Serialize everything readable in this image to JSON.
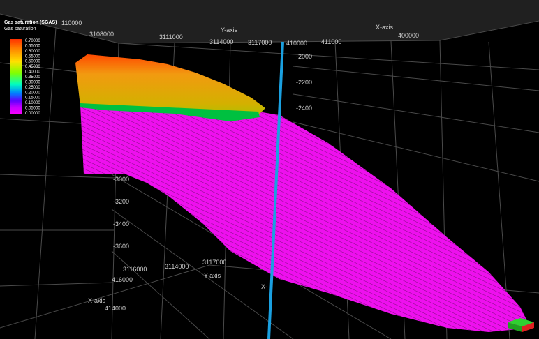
{
  "legend": {
    "title": "Gas saturation (SGAS)",
    "subtitle": "Gas saturation",
    "labels": [
      "0.70000",
      "0.65000",
      "0.60000",
      "0.55000",
      "0.50000",
      "0.45000",
      "0.40000",
      "0.35000",
      "0.30000",
      "0.25000",
      "0.20000",
      "0.15000",
      "0.10000",
      "0.05000",
      "0.00000"
    ]
  },
  "top_axis": {
    "labels": [
      "110000",
      "3108000",
      "3111000",
      "Y-axis",
      "3114000",
      "3117000",
      "410000",
      "411000",
      "X-axis",
      "400000"
    ]
  },
  "depth_axis": {
    "labels": [
      "-2000",
      "-2200",
      "-2400",
      "-3000",
      "-3200",
      "-3400",
      "-3600"
    ]
  },
  "bottom_axis": {
    "labels": [
      "3116000",
      "3114000",
      "3117000",
      "Y-axis",
      "416000",
      "X-axis",
      "414000",
      "X-"
    ]
  }
}
